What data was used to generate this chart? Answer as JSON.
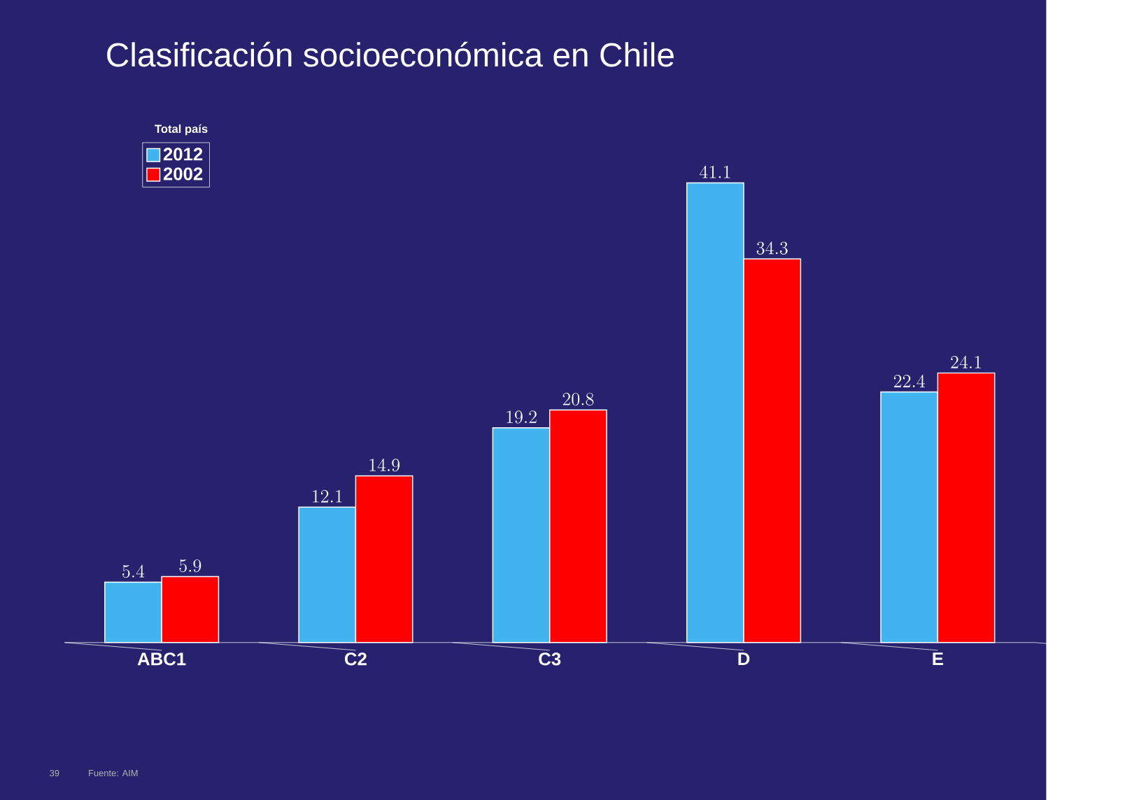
{
  "chart_data": {
    "type": "bar",
    "title": "Clasificación socioeconómica en Chile",
    "legend_title": "Total país",
    "categories": [
      "ABC1",
      "C2",
      "C3",
      "D",
      "E"
    ],
    "series": [
      {
        "name": "2012",
        "color": "#41b4f0",
        "values": [
          5.4,
          12.1,
          19.2,
          41.1,
          22.4
        ]
      },
      {
        "name": "2002",
        "color": "#ff0000",
        "values": [
          5.9,
          14.9,
          20.8,
          34.3,
          24.1
        ]
      }
    ],
    "data_labels": true,
    "legend": "top left",
    "annotations": [
      "39",
      "Fuente: AIM"
    ]
  }
}
